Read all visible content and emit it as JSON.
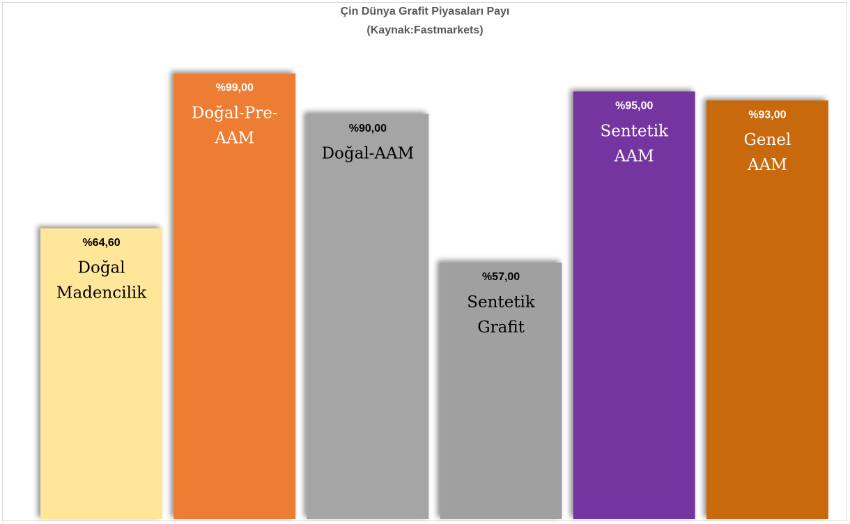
{
  "chart_data": {
    "type": "bar",
    "title": "Çin Dünya Grafit Piyasaları Payı",
    "subtitle": "(Kaynak:Fastmarkets)",
    "categories": [
      [
        "Doğal",
        "Madencilik"
      ],
      [
        "Doğal-Pre-",
        "AAM"
      ],
      [
        "Doğal-AAM"
      ],
      [
        "Sentetik",
        "Grafit"
      ],
      [
        "Sentetik",
        "AAM"
      ],
      [
        "Genel",
        "AAM"
      ]
    ],
    "values": [
      64.6,
      99,
      90,
      57,
      95,
      93
    ],
    "value_labels": [
      "%64,60",
      "%99,00",
      "%90,00",
      "%57,00",
      "%95,00",
      "%93,00"
    ],
    "colors": [
      "#FFE699",
      "#ED7D31",
      "#A5A5A5",
      "#A0A0A0",
      "#7434A0",
      "#C8690A"
    ],
    "ylim": [
      0,
      100
    ]
  }
}
